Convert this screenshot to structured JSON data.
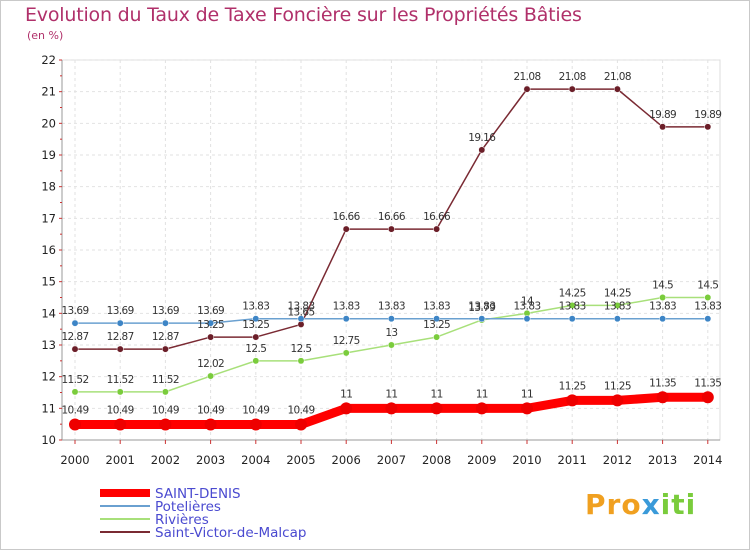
{
  "chart_data": {
    "type": "line",
    "title": "Evolution du Taux de Taxe Foncière sur les Propriétés Bâties",
    "ylabel": "(en %)",
    "xlabel": "",
    "x": [
      "2000",
      "2001",
      "2002",
      "2003",
      "2004",
      "2005",
      "2006",
      "2007",
      "2008",
      "2009",
      "2010",
      "2011",
      "2012",
      "2013",
      "2014"
    ],
    "ylim": [
      10,
      22
    ],
    "yticks": [
      10,
      11,
      12,
      13,
      14,
      15,
      16,
      17,
      18,
      19,
      20,
      21,
      22
    ],
    "series": [
      {
        "name": "SAINT-DENIS",
        "color": "#ff0000",
        "marker": "#ee0000",
        "width": 9,
        "values": [
          10.49,
          10.49,
          10.49,
          10.49,
          10.49,
          10.49,
          11,
          11,
          11,
          11,
          11,
          11.25,
          11.25,
          11.35,
          11.35
        ],
        "labels": [
          "10.49",
          "10.49",
          "10.49",
          "10.49",
          "10.49",
          "10.49",
          "11",
          "11",
          "11",
          "11",
          "11",
          "11.25",
          "11.25",
          "11.35",
          "11.35"
        ]
      },
      {
        "name": "Potelières",
        "color": "#6aa0d0",
        "marker": "#3d85c6",
        "width": 1.5,
        "values": [
          13.69,
          13.69,
          13.69,
          13.69,
          13.83,
          13.83,
          13.83,
          13.83,
          13.83,
          13.83,
          13.83,
          13.83,
          13.83,
          13.83,
          13.83
        ],
        "labels": [
          "13.69",
          "13.69",
          "13.69",
          "13.69",
          "13.83",
          "13.83",
          "13.83",
          "13.83",
          "13.83",
          "13.83",
          "13.83",
          "13.83",
          "13.83",
          "13.83",
          "13.83"
        ]
      },
      {
        "name": "Rivières",
        "color": "#a8e07a",
        "marker": "#7acc3c",
        "width": 1.5,
        "values": [
          11.52,
          11.52,
          11.52,
          12.02,
          12.5,
          12.5,
          12.75,
          13,
          13.25,
          13.79,
          14,
          14.25,
          14.25,
          14.5,
          14.5
        ],
        "labels": [
          "11.52",
          "11.52",
          "11.52",
          "12.02",
          "12.5",
          "12.5",
          "12.75",
          "13",
          "13.25",
          "13.79",
          "14",
          "14.25",
          "14.25",
          "14.5",
          "14.5"
        ]
      },
      {
        "name": "Saint-Victor-de-Malcap",
        "color": "#7a2a33",
        "marker": "#6b1e28",
        "width": 1.5,
        "values": [
          12.87,
          12.87,
          12.87,
          13.25,
          13.25,
          13.65,
          16.66,
          16.66,
          16.66,
          19.16,
          21.08,
          21.08,
          21.08,
          19.89,
          19.89
        ],
        "labels": [
          "12.87",
          "12.87",
          "12.87",
          "13.25",
          "13.25",
          "13.65",
          "16.66",
          "16.66",
          "16.66",
          "19.16",
          "21.08",
          "21.08",
          "21.08",
          "19.89",
          "19.89"
        ]
      }
    ],
    "legend_position": "bottom-left",
    "grid": true
  },
  "logo": {
    "parts": [
      "Pro",
      "x",
      "iti"
    ],
    "colors": [
      "#f0a020",
      "#3a9ad9",
      "#7acc3c"
    ]
  }
}
